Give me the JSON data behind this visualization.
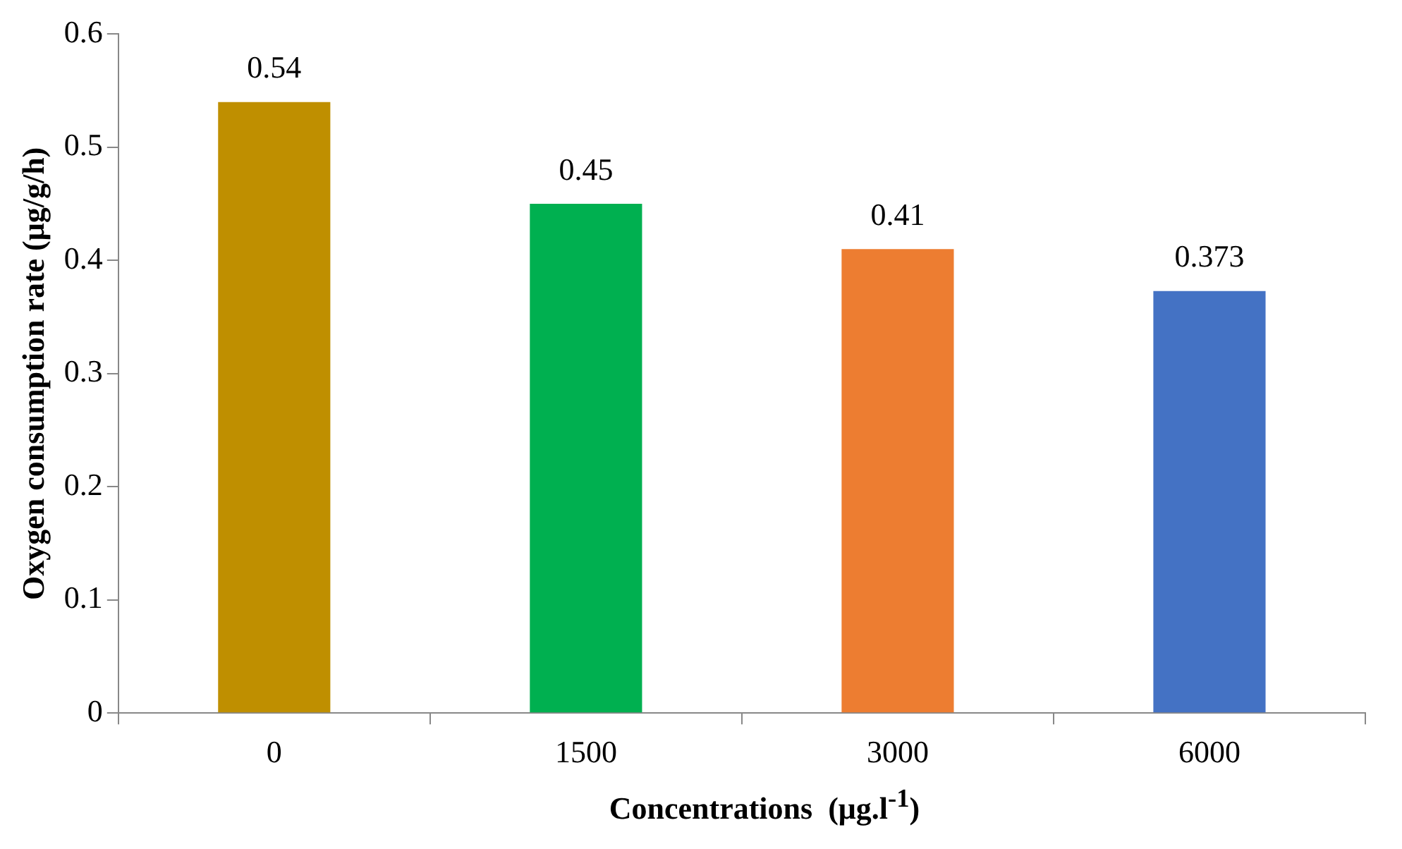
{
  "chart_data": {
    "type": "bar",
    "xlabel": "Concentrations  (μg.l$^{-1}$)",
    "ylabel": "Oxygen consumption rate (μg/g/h)",
    "categories": [
      "0",
      "1500",
      "3000",
      "6000"
    ],
    "values": [
      0.54,
      0.45,
      0.41,
      0.373
    ],
    "colors": [
      "#bf8f00",
      "#00b050",
      "#ed7d31",
      "#4472c4"
    ],
    "ylim": [
      0,
      0.6
    ],
    "yticks": [
      0,
      0.1,
      0.2,
      0.3,
      0.4,
      0.5,
      0.6
    ],
    "grid": false,
    "legend": false,
    "data_labels": true
  }
}
